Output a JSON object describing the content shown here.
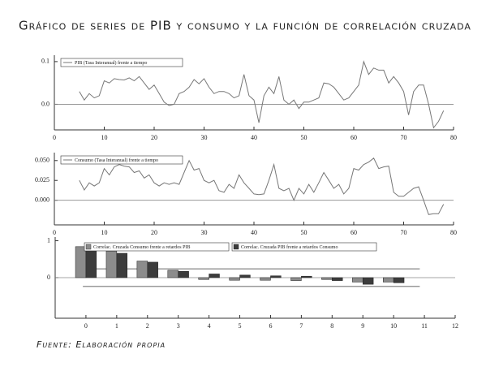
{
  "title": "Gráfico de series de PIB y consumo y la función de correlación cruzada",
  "source": "Fuente: Elaboración propia",
  "chart_data": [
    {
      "type": "line",
      "xlim": [
        0,
        80
      ],
      "xticks": [
        0,
        10,
        20,
        30,
        40,
        50,
        60,
        70,
        80
      ],
      "ylim": [
        -0.06,
        0.115
      ],
      "yticks": [
        0.1,
        {
          "value": 0,
          "label": "0.0"
        }
      ],
      "x": [
        5,
        6,
        7,
        8,
        9,
        10,
        11,
        12,
        13,
        14,
        15,
        16,
        17,
        18,
        19,
        20,
        21,
        22,
        23,
        24,
        25,
        26,
        27,
        28,
        29,
        30,
        31,
        32,
        33,
        34,
        35,
        36,
        37,
        38,
        39,
        40,
        41,
        42,
        43,
        44,
        45,
        46,
        47,
        48,
        49,
        50,
        51,
        52,
        53,
        54,
        55,
        56,
        57,
        58,
        59,
        60,
        61,
        62,
        63,
        64,
        65,
        66,
        67,
        68,
        69,
        70,
        71,
        72,
        73,
        74,
        75,
        76,
        77,
        78
      ],
      "series": [
        {
          "name": "PIB (Tasa Interanual) frente a tiempo",
          "color": "#777777",
          "values": [
            0.03,
            0.01,
            0.025,
            0.015,
            0.02,
            0.055,
            0.05,
            0.06,
            0.058,
            0.057,
            0.062,
            0.055,
            0.065,
            0.05,
            0.035,
            0.045,
            0.025,
            0.005,
            -0.003,
            0.0,
            0.025,
            0.03,
            0.04,
            0.058,
            0.048,
            0.06,
            0.04,
            0.025,
            0.03,
            0.03,
            0.025,
            0.015,
            0.02,
            0.07,
            0.02,
            0.01,
            -0.043,
            0.02,
            0.04,
            0.025,
            0.065,
            0.01,
            0.0,
            0.01,
            -0.01,
            0.005,
            0.005,
            0.01,
            0.015,
            0.05,
            0.048,
            0.04,
            0.025,
            0.01,
            0.015,
            0.03,
            0.045,
            0.1,
            0.07,
            0.085,
            0.08,
            0.08,
            0.05,
            0.065,
            0.05,
            0.03,
            -0.025,
            0.03,
            0.045,
            0.045,
            0.0,
            -0.055,
            -0.04,
            -0.015
          ]
        }
      ]
    },
    {
      "type": "line",
      "xlim": [
        0,
        80
      ],
      "xticks": [
        0,
        10,
        20,
        30,
        40,
        50,
        60,
        70,
        80
      ],
      "ylim": [
        -0.031,
        0.06
      ],
      "yticks": [
        {
          "value": 0.05,
          "label": "0.050"
        },
        {
          "value": 0.025,
          "label": "0.025"
        },
        {
          "value": 0,
          "label": "0.000"
        }
      ],
      "x": [
        5,
        6,
        7,
        8,
        9,
        10,
        11,
        12,
        13,
        14,
        15,
        16,
        17,
        18,
        19,
        20,
        21,
        22,
        23,
        24,
        25,
        26,
        27,
        28,
        29,
        30,
        31,
        32,
        33,
        34,
        35,
        36,
        37,
        38,
        39,
        40,
        41,
        42,
        43,
        44,
        45,
        46,
        47,
        48,
        49,
        50,
        51,
        52,
        53,
        54,
        55,
        56,
        57,
        58,
        59,
        60,
        61,
        62,
        63,
        64,
        65,
        66,
        67,
        68,
        69,
        70,
        71,
        72,
        73,
        74,
        75,
        76,
        77,
        78
      ],
      "series": [
        {
          "name": "Consumo (Tasa Interanual) frente a tiempo",
          "color": "#777777",
          "values": [
            0.025,
            0.013,
            0.022,
            0.018,
            0.022,
            0.04,
            0.032,
            0.042,
            0.045,
            0.043,
            0.042,
            0.035,
            0.037,
            0.028,
            0.032,
            0.022,
            0.018,
            0.022,
            0.02,
            0.022,
            0.02,
            0.035,
            0.05,
            0.038,
            0.04,
            0.025,
            0.022,
            0.025,
            0.012,
            0.01,
            0.02,
            0.015,
            0.032,
            0.022,
            0.015,
            0.008,
            0.007,
            0.008,
            0.025,
            0.045,
            0.015,
            0.012,
            0.015,
            0.0,
            0.015,
            0.008,
            0.02,
            0.01,
            0.022,
            0.035,
            0.025,
            0.015,
            0.02,
            0.008,
            0.015,
            0.04,
            0.038,
            0.045,
            0.048,
            0.053,
            0.04,
            0.042,
            0.043,
            0.01,
            0.005,
            0.005,
            0.01,
            0.015,
            0.017,
            0.0,
            -0.018,
            -0.017,
            -0.017,
            -0.005
          ]
        }
      ]
    },
    {
      "type": "bar",
      "xlim": [
        -1,
        12
      ],
      "xticks": [
        0,
        1,
        2,
        3,
        4,
        5,
        6,
        7,
        8,
        9,
        10,
        11,
        12
      ],
      "ylim": [
        -1.1,
        1.1
      ],
      "yticks": [
        1,
        0
      ],
      "categories": [
        0,
        1,
        2,
        3,
        4,
        5,
        6,
        7,
        8,
        9,
        10
      ],
      "confidence_bands": [
        0.24,
        -0.24
      ],
      "series": [
        {
          "name": "Correlac. Cruzada Consumo frente a retardos PIB",
          "color": "#8c8c8c",
          "values": [
            0.84,
            0.72,
            0.45,
            0.2,
            -0.05,
            -0.07,
            -0.07,
            -0.08,
            -0.05,
            -0.12,
            -0.12
          ]
        },
        {
          "name": "Correlac. Cruzada PIB frente a retardos Consumo",
          "color": "#3c3c3c",
          "values": [
            0.82,
            0.66,
            0.42,
            0.17,
            0.1,
            0.07,
            0.05,
            0.04,
            -0.08,
            -0.18,
            -0.14
          ]
        }
      ]
    }
  ]
}
